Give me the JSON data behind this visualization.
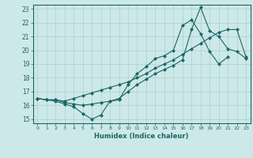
{
  "xlabel": "Humidex (Indice chaleur)",
  "bg_color": "#cde8e8",
  "line_color": "#1a6666",
  "grid_color": "#aad0d0",
  "xlim": [
    -0.5,
    23.5
  ],
  "ylim": [
    14.7,
    23.3
  ],
  "xticks": [
    0,
    1,
    2,
    3,
    4,
    5,
    6,
    7,
    8,
    9,
    10,
    11,
    12,
    13,
    14,
    15,
    16,
    17,
    18,
    19,
    20,
    21,
    22,
    23
  ],
  "yticks": [
    15,
    16,
    17,
    18,
    19,
    20,
    21,
    22,
    23
  ],
  "series1_x": [
    0,
    1,
    2,
    3,
    4,
    5,
    6,
    7,
    8,
    9,
    10,
    11,
    12,
    13,
    14,
    15,
    16,
    17,
    18,
    19,
    20,
    21,
    22,
    23
  ],
  "series1_y": [
    16.5,
    16.4,
    16.3,
    16.1,
    15.9,
    15.4,
    15.0,
    15.3,
    16.3,
    16.4,
    17.5,
    18.3,
    18.8,
    19.4,
    19.6,
    20.0,
    21.8,
    22.2,
    21.2,
    19.9,
    19.0,
    19.5,
    null,
    null
  ],
  "series2_x": [
    0,
    1,
    2,
    3,
    4,
    5,
    6,
    7,
    8,
    9,
    10,
    11,
    12,
    13,
    14,
    15,
    16,
    17,
    18,
    19,
    20,
    21,
    22,
    23
  ],
  "series2_y": [
    16.5,
    16.4,
    16.4,
    16.3,
    16.5,
    16.7,
    16.9,
    17.1,
    17.3,
    17.5,
    17.7,
    18.0,
    18.3,
    18.7,
    19.0,
    19.3,
    19.7,
    20.1,
    20.5,
    20.9,
    21.3,
    21.5,
    21.5,
    19.5
  ],
  "series3_x": [
    0,
    1,
    2,
    3,
    4,
    5,
    6,
    7,
    8,
    9,
    10,
    11,
    12,
    13,
    14,
    15,
    16,
    17,
    18,
    19,
    20,
    21,
    22,
    23
  ],
  "series3_y": [
    16.5,
    16.4,
    16.4,
    16.2,
    16.1,
    16.0,
    16.1,
    16.2,
    16.3,
    16.5,
    17.0,
    17.5,
    17.9,
    18.3,
    18.6,
    18.9,
    19.3,
    21.5,
    23.1,
    21.4,
    21.0,
    20.1,
    19.9,
    19.4
  ]
}
